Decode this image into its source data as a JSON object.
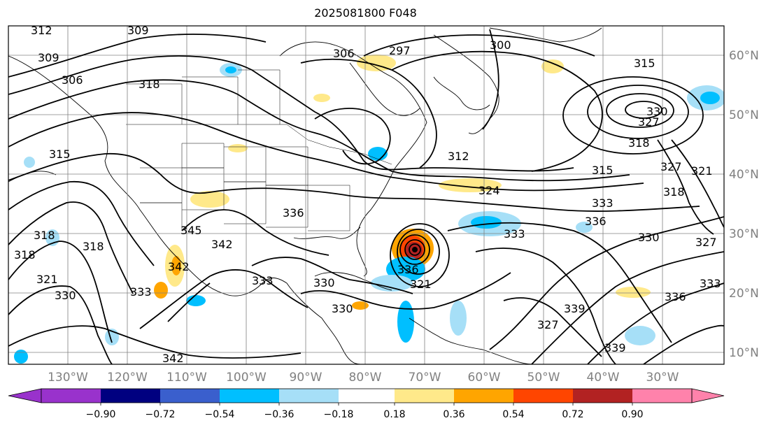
{
  "title": "2025081800 F048",
  "map": {
    "lon_labels": [
      "130°W",
      "120°W",
      "110°W",
      "100°W",
      "90°W",
      "80°W",
      "70°W",
      "60°W",
      "50°W",
      "40°W",
      "30°W"
    ],
    "lat_labels": [
      "60°N",
      "50°N",
      "40°N",
      "30°N",
      "20°N",
      "10°N"
    ],
    "lon_range": [
      -140,
      -20
    ],
    "lat_range": [
      8,
      65
    ],
    "grid_step_degrees": 10,
    "contour_labels": [
      "312",
      "309",
      "309",
      "306",
      "318",
      "297",
      "306",
      "300",
      "315",
      "315",
      "330",
      "327",
      "318",
      "315",
      "327",
      "321",
      "318",
      "312",
      "324",
      "333",
      "336",
      "333",
      "330",
      "327",
      "333",
      "336",
      "339",
      "336",
      "333",
      "330",
      "330",
      "342",
      "339",
      "336",
      "330",
      "333",
      "327",
      "345",
      "342",
      "318",
      "318",
      "321",
      "318",
      "321",
      "342"
    ],
    "colors": {
      "contour": "#000000",
      "grid": "#808080",
      "axis_label": "#808080",
      "positive_shade_light": "#ffe98a",
      "positive_shade_mid": "#ffa500",
      "positive_shade_strong": "#ff4500",
      "negative_shade_light": "#a6dff7",
      "negative_shade_mid": "#00bfff",
      "ocean_shade": "#ffffff"
    }
  },
  "colorbar": {
    "tick_labels": [
      "−0.90",
      "−0.72",
      "−0.54",
      "−0.36",
      "−0.18",
      "0.18",
      "0.36",
      "0.54",
      "0.72",
      "0.90"
    ],
    "bins": [
      {
        "color": "#9932cc"
      },
      {
        "color": "#000080"
      },
      {
        "color": "#3a5fcd"
      },
      {
        "color": "#00bfff"
      },
      {
        "color": "#a6dff7"
      },
      {
        "color": "#ffffff"
      },
      {
        "color": "#ffe98a"
      },
      {
        "color": "#ffa500"
      },
      {
        "color": "#ff4500"
      },
      {
        "color": "#b22222"
      },
      {
        "color": "#ff82ab"
      }
    ]
  }
}
